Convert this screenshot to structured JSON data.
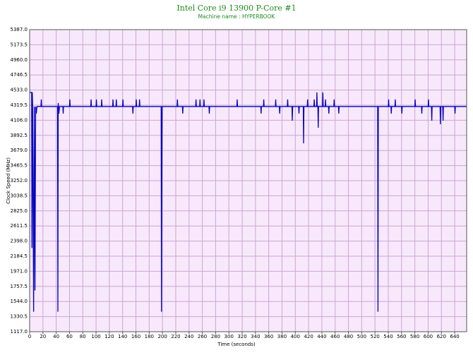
{
  "chart_data": {
    "type": "line",
    "title": "Intel Core i9 13900 P-Core #1",
    "subtitle": "Machine name : HYPERBOOK",
    "x_label": "Time (seconds)",
    "y_label": "Clock Speed (MHz)",
    "x": [
      0,
      3,
      3.5,
      4,
      4.5,
      6,
      7,
      8,
      9,
      10,
      11,
      17,
      17.5,
      18,
      42,
      42.5,
      43,
      44,
      45,
      50,
      50.5,
      51,
      60,
      60.5,
      61,
      92,
      92.5,
      93,
      100,
      100.5,
      101,
      108,
      108.5,
      109,
      125,
      125.5,
      126,
      130,
      130.5,
      131,
      140,
      140.5,
      141,
      155,
      155.5,
      156,
      160,
      160.5,
      161,
      165,
      165.5,
      166,
      198,
      198.5,
      199,
      199.5,
      222,
      222.5,
      223,
      230,
      230.5,
      231,
      250,
      250.5,
      251,
      256,
      256.5,
      257,
      262,
      262.5,
      263,
      270,
      270.5,
      271,
      312,
      312.5,
      313,
      348,
      348.5,
      349,
      352,
      352.5,
      353,
      370,
      370.5,
      371,
      376,
      376.5,
      377,
      388,
      388.5,
      389,
      395,
      395.5,
      396,
      405,
      405.5,
      406,
      412,
      412.5,
      413,
      418,
      418.5,
      419,
      428,
      428.5,
      429,
      432,
      432.5,
      433,
      434,
      434.5,
      435,
      441,
      441.5,
      442,
      445,
      445.5,
      446,
      450,
      450.5,
      451,
      458,
      458.5,
      459,
      465,
      465.5,
      466,
      524,
      524.5,
      525,
      540,
      540.5,
      541,
      544,
      544.5,
      545,
      550,
      550.5,
      551,
      560,
      560.5,
      561,
      580,
      580.5,
      581,
      590,
      590.5,
      591,
      600,
      600.5,
      601,
      605,
      605.5,
      606,
      618,
      618.5,
      619,
      622,
      622.5,
      623,
      640,
      640.5,
      641,
      658
    ],
    "series": [
      {
        "color": "#0000c0",
        "values": [
          4500,
          4500,
          2300,
          4500,
          4300,
          1400,
          4300,
          1700,
          4300,
          4200,
          4300,
          4300,
          4400,
          4300,
          4300,
          1400,
          4350,
          4200,
          4300,
          4300,
          4200,
          4300,
          4300,
          4400,
          4300,
          4300,
          4400,
          4300,
          4300,
          4400,
          4300,
          4300,
          4400,
          4300,
          4300,
          4400,
          4300,
          4300,
          4400,
          4300,
          4300,
          4400,
          4300,
          4300,
          4200,
          4300,
          4300,
          4400,
          4300,
          4300,
          4400,
          4300,
          4300,
          1400,
          3300,
          4300,
          4300,
          4400,
          4300,
          4300,
          4200,
          4300,
          4300,
          4400,
          4300,
          4300,
          4400,
          4300,
          4300,
          4400,
          4300,
          4300,
          4200,
          4300,
          4300,
          4400,
          4300,
          4300,
          4200,
          4300,
          4300,
          4400,
          4300,
          4300,
          4400,
          4300,
          4300,
          4200,
          4300,
          4300,
          4400,
          4300,
          4300,
          4100,
          4300,
          4300,
          4200,
          4300,
          4300,
          3780,
          4300,
          4300,
          4400,
          4300,
          4300,
          4400,
          4300,
          4300,
          4500,
          4300,
          4300,
          4000,
          4300,
          4300,
          4500,
          4300,
          4300,
          4400,
          4300,
          4300,
          4200,
          4300,
          4300,
          4400,
          4300,
          4300,
          4200,
          4300,
          4300,
          1400,
          4300,
          4300,
          4400,
          4300,
          4300,
          4200,
          4300,
          4300,
          4400,
          4300,
          4300,
          4200,
          4300,
          4300,
          4400,
          4300,
          4300,
          4200,
          4300,
          4300,
          4400,
          4300,
          4300,
          4100,
          4300,
          4300,
          4050,
          4300,
          4300,
          4100,
          4300,
          4300,
          4200,
          4300,
          4300
        ]
      }
    ],
    "xlim": [
      0,
      658
    ],
    "xticks": [
      0,
      20,
      40,
      60,
      80,
      100,
      120,
      140,
      160,
      180,
      200,
      220,
      240,
      260,
      280,
      300,
      320,
      340,
      360,
      380,
      400,
      420,
      440,
      460,
      480,
      500,
      520,
      540,
      560,
      580,
      600,
      620,
      640
    ],
    "ylim": [
      1117,
      5387
    ],
    "yticks": [
      {
        "value": 1117,
        "label": "1117.0"
      },
      1330.5,
      {
        "value": 1544,
        "label": "1544.0"
      },
      1757.5,
      {
        "value": 1971,
        "label": "1971.0"
      },
      2184.5,
      {
        "value": 2398,
        "label": "2398.0"
      },
      2611.5,
      {
        "value": 2825,
        "label": "2825.0"
      },
      3038.5,
      {
        "value": 3252,
        "label": "3252.0"
      },
      3465.5,
      {
        "value": 3679,
        "label": "3679.0"
      },
      3892.5,
      {
        "value": 4106,
        "label": "4106.0"
      },
      4319.5,
      {
        "value": 4533,
        "label": "4533.0"
      },
      4746.5,
      {
        "value": 4960,
        "label": "4960.0"
      },
      5173.5,
      {
        "value": 5387,
        "label": "5387.0"
      }
    ],
    "grid": true
  }
}
